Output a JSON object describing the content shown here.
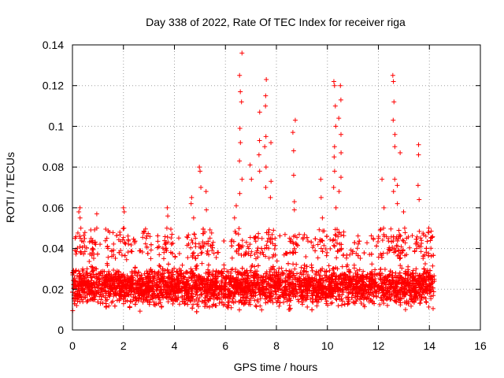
{
  "chart_data": {
    "type": "scatter",
    "title": "Day 338 of 2022, Rate Of TEC Index for receiver riga",
    "xlabel": "GPS time / hours",
    "ylabel": "ROTI / TECUs",
    "xlim": [
      0,
      16
    ],
    "ylim": [
      0,
      0.14
    ],
    "xticks": [
      "0",
      "2",
      "4",
      "6",
      "8",
      "10",
      "12",
      "14",
      "16"
    ],
    "yticks": [
      "0",
      "0.02",
      "0.04",
      "0.06",
      "0.08",
      "0.1",
      "0.12",
      "0.14"
    ],
    "grid": true,
    "marker": "+",
    "color": "#ff0000",
    "x_data_range": [
      0,
      14.2
    ],
    "baseline_band": [
      0.008,
      0.035
    ],
    "spikes": [
      {
        "x": 0.3,
        "values": [
          0.045,
          0.05,
          0.055,
          0.058,
          0.06
        ]
      },
      {
        "x": 0.9,
        "values": [
          0.042,
          0.05,
          0.057
        ]
      },
      {
        "x": 1.4,
        "values": [
          0.045,
          0.048
        ]
      },
      {
        "x": 2.0,
        "values": [
          0.05,
          0.058,
          0.06
        ]
      },
      {
        "x": 2.9,
        "values": [
          0.045
        ]
      },
      {
        "x": 3.7,
        "values": [
          0.05,
          0.056,
          0.06
        ]
      },
      {
        "x": 4.7,
        "values": [
          0.055,
          0.062,
          0.065
        ]
      },
      {
        "x": 5.0,
        "values": [
          0.07,
          0.078,
          0.08
        ]
      },
      {
        "x": 5.3,
        "values": [
          0.068,
          0.059
        ]
      },
      {
        "x": 6.4,
        "values": [
          0.055,
          0.061
        ]
      },
      {
        "x": 6.6,
        "values": [
          0.067,
          0.074,
          0.083,
          0.092,
          0.099,
          0.112,
          0.117,
          0.125,
          0.136
        ]
      },
      {
        "x": 7.0,
        "values": [
          0.074,
          0.081
        ]
      },
      {
        "x": 7.3,
        "values": [
          0.078,
          0.086,
          0.093,
          0.107
        ]
      },
      {
        "x": 7.6,
        "values": [
          0.07,
          0.08,
          0.09,
          0.095,
          0.11,
          0.115,
          0.123
        ]
      },
      {
        "x": 7.8,
        "values": [
          0.065,
          0.073,
          0.092
        ]
      },
      {
        "x": 8.7,
        "values": [
          0.059,
          0.063,
          0.076,
          0.088,
          0.097,
          0.103
        ]
      },
      {
        "x": 9.8,
        "values": [
          0.055,
          0.065,
          0.074
        ]
      },
      {
        "x": 10.3,
        "values": [
          0.06,
          0.07,
          0.078,
          0.085,
          0.09,
          0.1,
          0.11,
          0.12,
          0.122
        ]
      },
      {
        "x": 10.5,
        "values": [
          0.068,
          0.075,
          0.087,
          0.096,
          0.104,
          0.113,
          0.12
        ]
      },
      {
        "x": 12.2,
        "values": [
          0.05,
          0.06,
          0.074
        ]
      },
      {
        "x": 12.6,
        "values": [
          0.068,
          0.074,
          0.09,
          0.096,
          0.103,
          0.112,
          0.122,
          0.125
        ]
      },
      {
        "x": 12.8,
        "values": [
          0.062,
          0.071,
          0.087
        ]
      },
      {
        "x": 13.0,
        "values": [
          0.05,
          0.058
        ]
      },
      {
        "x": 13.6,
        "values": [
          0.064,
          0.071,
          0.086,
          0.091
        ]
      },
      {
        "x": 14.0,
        "values": [
          0.048,
          0.05
        ]
      }
    ]
  }
}
